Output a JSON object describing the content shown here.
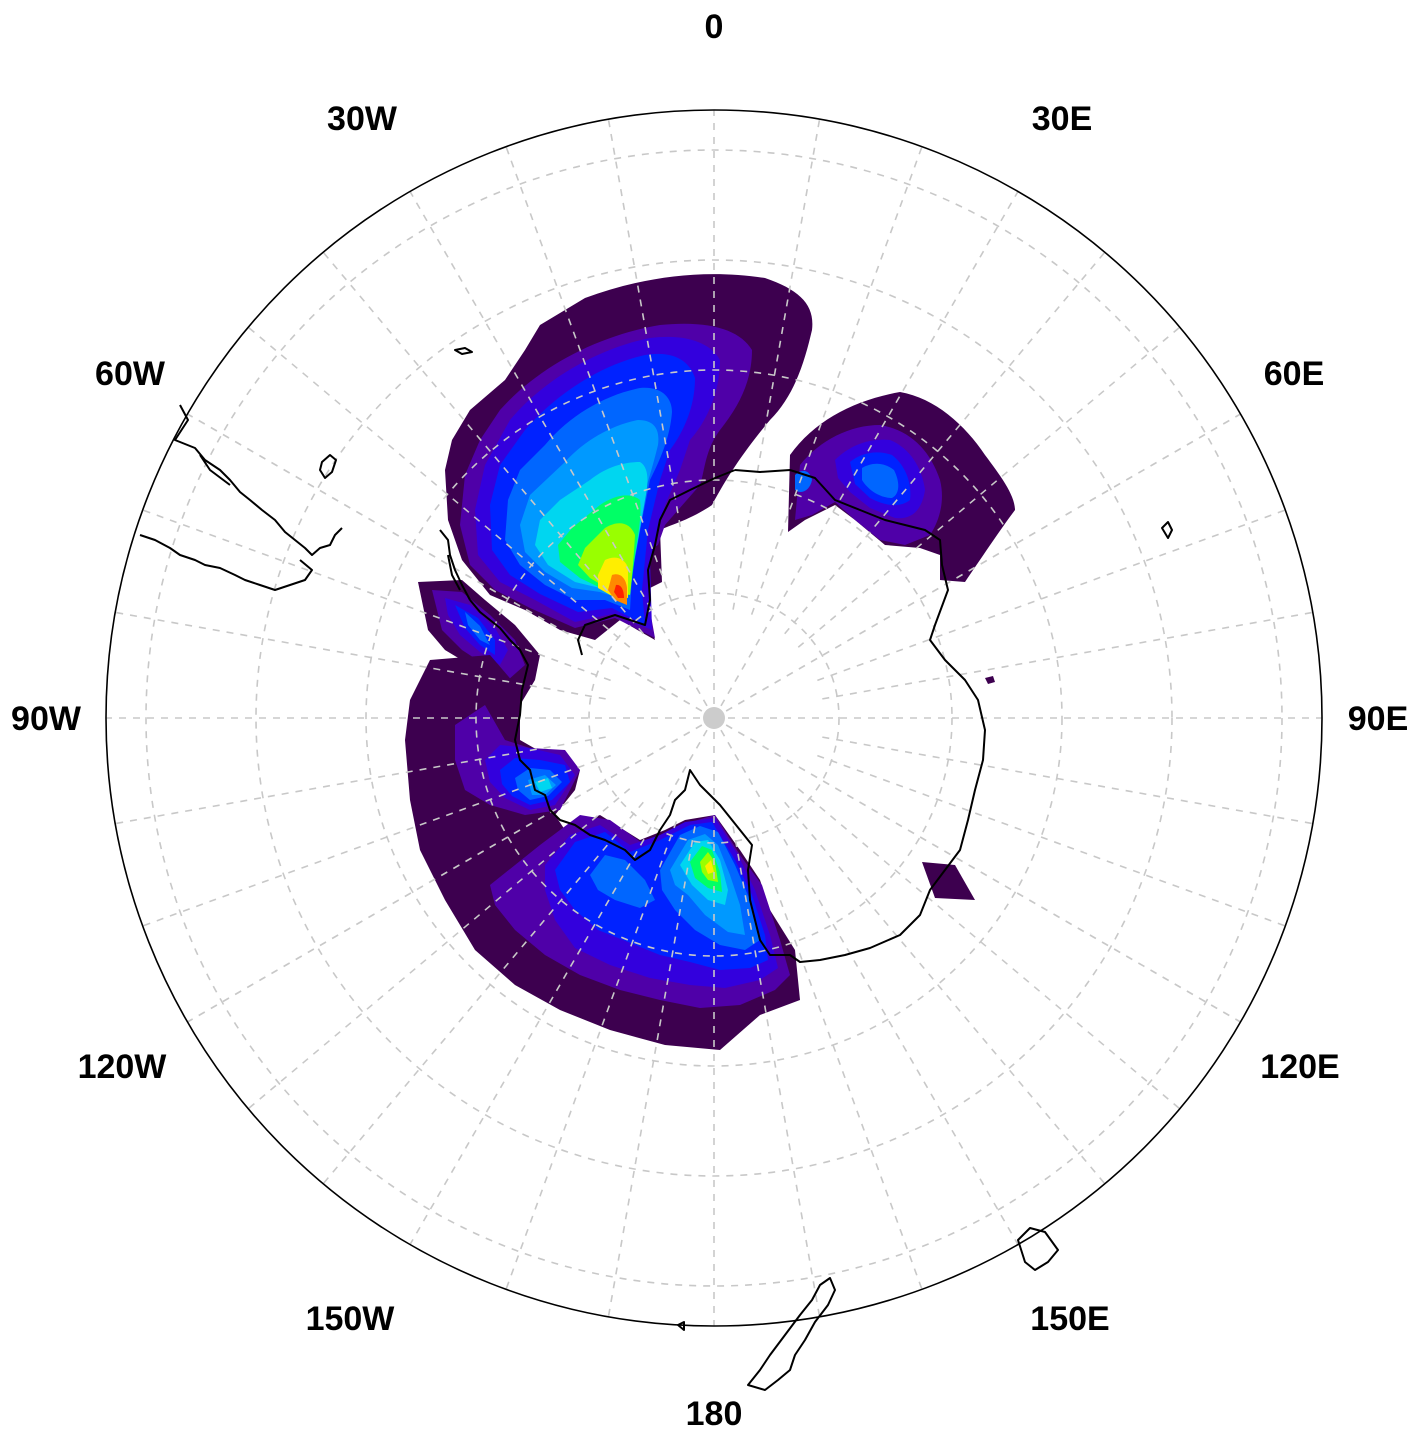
{
  "map": {
    "projection": "south-polar-stereographic",
    "longitude_labels": [
      "0",
      "30E",
      "60E",
      "90E",
      "120E",
      "150E",
      "180",
      "150W",
      "120W",
      "90W",
      "60W",
      "30W"
    ],
    "gridlines": "dashed",
    "colors": {
      "level_1": "#3d004f",
      "level_2": "#4f00a8",
      "level_3": "#3300dd",
      "level_4": "#0022ff",
      "level_5": "#0066ff",
      "level_6": "#0099ff",
      "level_7": "#00d6f0",
      "level_8": "#00ff66",
      "level_9": "#99ff00",
      "level_10": "#ffee00",
      "level_11": "#ff8800",
      "level_12": "#ff2200",
      "coastline": "#000000",
      "grid": "#c8c8c8",
      "pole": "#cccccc"
    }
  }
}
